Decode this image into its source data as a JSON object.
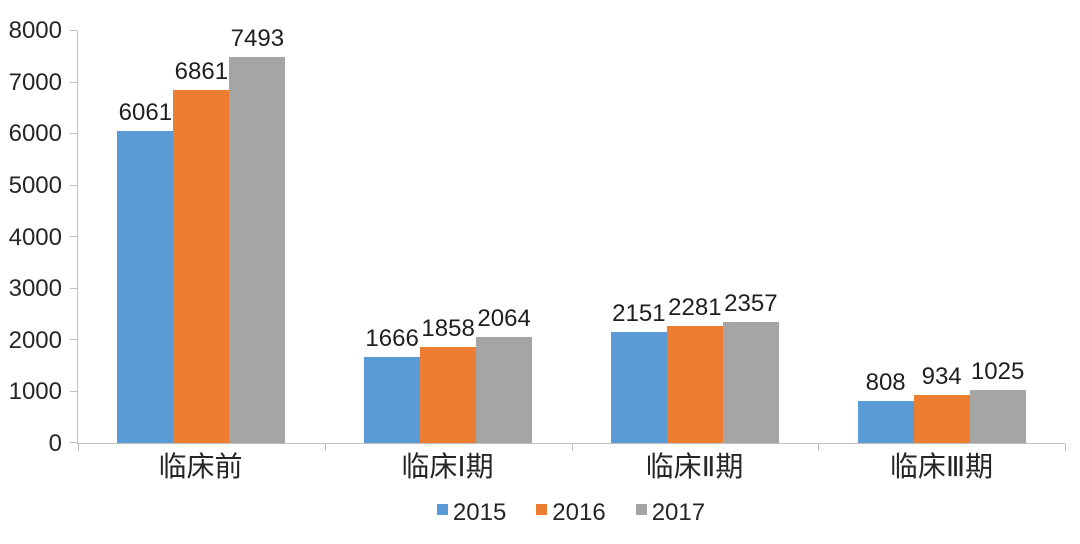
{
  "chart_data": {
    "type": "bar",
    "title": "",
    "xlabel": "",
    "ylabel": "",
    "categories": [
      "临床前",
      "临床Ⅰ期",
      "临床Ⅱ期",
      "临床Ⅲ期"
    ],
    "series": [
      {
        "name": "2015",
        "color": "#5B9BD5",
        "values": [
          6061,
          1666,
          2151,
          808
        ]
      },
      {
        "name": "2016",
        "color": "#ED7D31",
        "values": [
          6861,
          1858,
          2281,
          934
        ]
      },
      {
        "name": "2017",
        "color": "#A5A5A5",
        "values": [
          7493,
          2064,
          2357,
          1025
        ]
      }
    ],
    "ylim": [
      0,
      8000
    ],
    "yticks": [
      0,
      1000,
      2000,
      3000,
      4000,
      5000,
      6000,
      7000,
      8000
    ],
    "grid": false,
    "data_labels": true,
    "legend_position": "bottom",
    "colors": {
      "axis_line": "#BFBFBF",
      "text": "#262626",
      "background": "#FFFFFF"
    }
  }
}
